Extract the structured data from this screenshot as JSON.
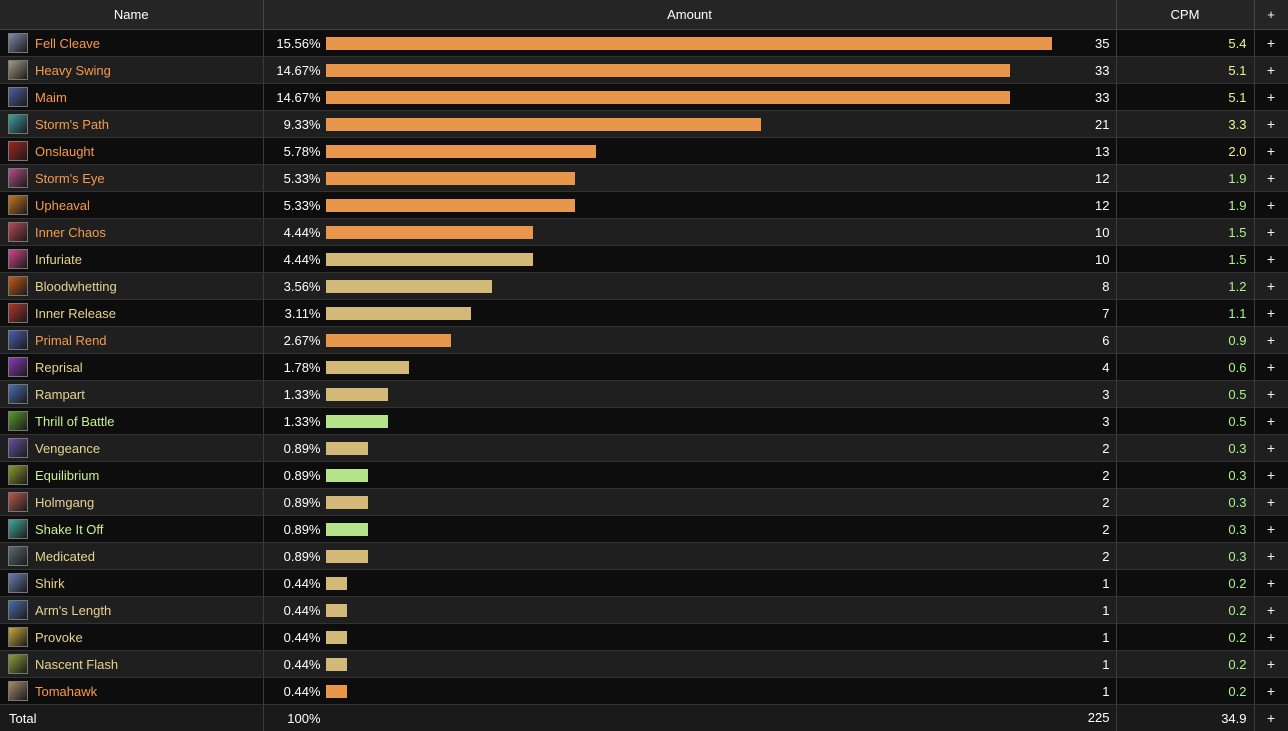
{
  "header": {
    "name": "Name",
    "amount": "Amount",
    "cpm": "CPM",
    "plus": "+"
  },
  "colors": {
    "orange": "#e8964a",
    "tan": "#d2b978",
    "green": "#b5e389",
    "name_orange": "#f79a4d",
    "name_tan": "#e8d38f",
    "name_green": "#c9f18d",
    "cpm_yellow": "#f4f48b",
    "cpm_green": "#a8f58a"
  },
  "rows": [
    {
      "name": "Fell Cleave",
      "pct": "15.56%",
      "fraction": 0.1556,
      "count": "35",
      "cpm": "5.4",
      "bar": "orange",
      "name_color": "name_orange",
      "cpm_color": "cpm_yellow",
      "icon": "fell-cleave-icon",
      "icon_color": "#7e8aa8"
    },
    {
      "name": "Heavy Swing",
      "pct": "14.67%",
      "fraction": 0.1467,
      "count": "33",
      "cpm": "5.1",
      "bar": "orange",
      "name_color": "name_orange",
      "cpm_color": "cpm_yellow",
      "icon": "heavy-swing-icon",
      "icon_color": "#a59a86"
    },
    {
      "name": "Maim",
      "pct": "14.67%",
      "fraction": 0.1467,
      "count": "33",
      "cpm": "5.1",
      "bar": "orange",
      "name_color": "name_orange",
      "cpm_color": "cpm_yellow",
      "icon": "maim-icon",
      "icon_color": "#4c5fa0"
    },
    {
      "name": "Storm's Path",
      "pct": "9.33%",
      "fraction": 0.0933,
      "count": "21",
      "cpm": "3.3",
      "bar": "orange",
      "name_color": "name_orange",
      "cpm_color": "cpm_yellow",
      "icon": "storms-path-icon",
      "icon_color": "#3e9fa3"
    },
    {
      "name": "Onslaught",
      "pct": "5.78%",
      "fraction": 0.0578,
      "count": "13",
      "cpm": "2.0",
      "bar": "orange",
      "name_color": "name_orange",
      "cpm_color": "cpm_yellow",
      "icon": "onslaught-icon",
      "icon_color": "#a3261e"
    },
    {
      "name": "Storm's Eye",
      "pct": "5.33%",
      "fraction": 0.0533,
      "count": "12",
      "cpm": "1.9",
      "bar": "orange",
      "name_color": "name_orange",
      "cpm_color": "cpm_green",
      "icon": "storms-eye-icon",
      "icon_color": "#b34f86"
    },
    {
      "name": "Upheaval",
      "pct": "5.33%",
      "fraction": 0.0533,
      "count": "12",
      "cpm": "1.9",
      "bar": "orange",
      "name_color": "name_orange",
      "cpm_color": "cpm_green",
      "icon": "upheaval-icon",
      "icon_color": "#c8731e"
    },
    {
      "name": "Inner Chaos",
      "pct": "4.44%",
      "fraction": 0.0444,
      "count": "10",
      "cpm": "1.5",
      "bar": "orange",
      "name_color": "name_orange",
      "cpm_color": "cpm_green",
      "icon": "inner-chaos-icon",
      "icon_color": "#b8485a"
    },
    {
      "name": "Infuriate",
      "pct": "4.44%",
      "fraction": 0.0444,
      "count": "10",
      "cpm": "1.5",
      "bar": "tan",
      "name_color": "name_tan",
      "cpm_color": "cpm_green",
      "icon": "infuriate-icon",
      "icon_color": "#d2458c"
    },
    {
      "name": "Bloodwhetting",
      "pct": "3.56%",
      "fraction": 0.0356,
      "count": "8",
      "cpm": "1.2",
      "bar": "tan",
      "name_color": "name_tan",
      "cpm_color": "cpm_green",
      "icon": "bloodwhetting-icon",
      "icon_color": "#c25a1b"
    },
    {
      "name": "Inner Release",
      "pct": "3.11%",
      "fraction": 0.0311,
      "count": "7",
      "cpm": "1.1",
      "bar": "tan",
      "name_color": "name_tan",
      "cpm_color": "cpm_green",
      "icon": "inner-release-icon",
      "icon_color": "#b3342b"
    },
    {
      "name": "Primal Rend",
      "pct": "2.67%",
      "fraction": 0.0267,
      "count": "6",
      "cpm": "0.9",
      "bar": "orange",
      "name_color": "name_orange",
      "cpm_color": "cpm_green",
      "icon": "primal-rend-icon",
      "icon_color": "#4b5fae"
    },
    {
      "name": "Reprisal",
      "pct": "1.78%",
      "fraction": 0.0178,
      "count": "4",
      "cpm": "0.6",
      "bar": "tan",
      "name_color": "name_tan",
      "cpm_color": "cpm_green",
      "icon": "reprisal-icon",
      "icon_color": "#8a3ab8"
    },
    {
      "name": "Rampart",
      "pct": "1.33%",
      "fraction": 0.0133,
      "count": "3",
      "cpm": "0.5",
      "bar": "tan",
      "name_color": "name_tan",
      "cpm_color": "cpm_green",
      "icon": "rampart-icon",
      "icon_color": "#4a6fb0"
    },
    {
      "name": "Thrill of Battle",
      "pct": "1.33%",
      "fraction": 0.0133,
      "count": "3",
      "cpm": "0.5",
      "bar": "green",
      "name_color": "name_green",
      "cpm_color": "cpm_green",
      "icon": "thrill-of-battle-icon",
      "icon_color": "#5a9a2f"
    },
    {
      "name": "Vengeance",
      "pct": "0.89%",
      "fraction": 0.0089,
      "count": "2",
      "cpm": "0.3",
      "bar": "tan",
      "name_color": "name_tan",
      "cpm_color": "cpm_green",
      "icon": "vengeance-icon",
      "icon_color": "#6a4fa0"
    },
    {
      "name": "Equilibrium",
      "pct": "0.89%",
      "fraction": 0.0089,
      "count": "2",
      "cpm": "0.3",
      "bar": "green",
      "name_color": "name_green",
      "cpm_color": "cpm_green",
      "icon": "equilibrium-icon",
      "icon_color": "#8a9a2a"
    },
    {
      "name": "Holmgang",
      "pct": "0.89%",
      "fraction": 0.0089,
      "count": "2",
      "cpm": "0.3",
      "bar": "tan",
      "name_color": "name_tan",
      "cpm_color": "cpm_green",
      "icon": "holmgang-icon",
      "icon_color": "#b85a4a"
    },
    {
      "name": "Shake It Off",
      "pct": "0.89%",
      "fraction": 0.0089,
      "count": "2",
      "cpm": "0.3",
      "bar": "green",
      "name_color": "name_green",
      "cpm_color": "cpm_green",
      "icon": "shake-it-off-icon",
      "icon_color": "#3fa89a"
    },
    {
      "name": "Medicated",
      "pct": "0.89%",
      "fraction": 0.0089,
      "count": "2",
      "cpm": "0.3",
      "bar": "tan",
      "name_color": "name_tan",
      "cpm_color": "cpm_green",
      "icon": "medicated-icon",
      "icon_color": "#5a6a70"
    },
    {
      "name": "Shirk",
      "pct": "0.44%",
      "fraction": 0.0044,
      "count": "1",
      "cpm": "0.2",
      "bar": "tan",
      "name_color": "name_tan",
      "cpm_color": "cpm_green",
      "icon": "shirk-icon",
      "icon_color": "#6a7fb0"
    },
    {
      "name": "Arm's Length",
      "pct": "0.44%",
      "fraction": 0.0044,
      "count": "1",
      "cpm": "0.2",
      "bar": "tan",
      "name_color": "name_tan",
      "cpm_color": "cpm_green",
      "icon": "arms-length-icon",
      "icon_color": "#4a6fa8"
    },
    {
      "name": "Provoke",
      "pct": "0.44%",
      "fraction": 0.0044,
      "count": "1",
      "cpm": "0.2",
      "bar": "tan",
      "name_color": "name_tan",
      "cpm_color": "cpm_green",
      "icon": "provoke-icon",
      "icon_color": "#c8a83a"
    },
    {
      "name": "Nascent Flash",
      "pct": "0.44%",
      "fraction": 0.0044,
      "count": "1",
      "cpm": "0.2",
      "bar": "tan",
      "name_color": "name_tan",
      "cpm_color": "cpm_green",
      "icon": "nascent-flash-icon",
      "icon_color": "#8aa03a"
    },
    {
      "name": "Tomahawk",
      "pct": "0.44%",
      "fraction": 0.0044,
      "count": "1",
      "cpm": "0.2",
      "bar": "orange",
      "name_color": "name_orange",
      "cpm_color": "cpm_green",
      "icon": "tomahawk-icon",
      "icon_color": "#a88a6a"
    }
  ],
  "total": {
    "label": "Total",
    "pct": "100%",
    "count": "225",
    "cpm": "34.9",
    "plus": "+"
  }
}
